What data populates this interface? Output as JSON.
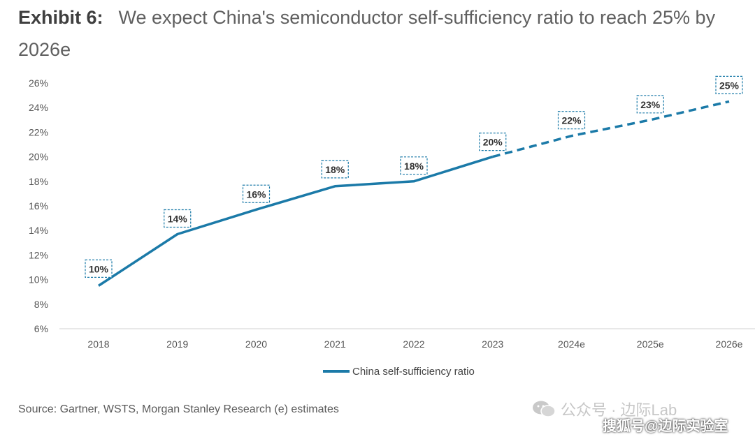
{
  "header": {
    "exhibit_label": "Exhibit 6:",
    "title": "We expect China's semiconductor self-sufficiency ratio to reach 25% by 2026e"
  },
  "chart_data": {
    "type": "line",
    "title": "We expect China's semiconductor self-sufficiency ratio to reach 25% by 2026e",
    "categories": [
      "2018",
      "2019",
      "2020",
      "2021",
      "2022",
      "2023",
      "2024e",
      "2025e",
      "2026e"
    ],
    "series": [
      {
        "name": "China self-sufficiency ratio",
        "values": [
          9.5,
          13.7,
          15.7,
          17.6,
          18.0,
          20.0,
          21.7,
          23.0,
          24.5
        ],
        "labels": [
          "10%",
          "14%",
          "16%",
          "18%",
          "18%",
          "20%",
          "22%",
          "23%",
          "25%"
        ],
        "estimate_start_index": 5,
        "color": "#1b7aa8"
      }
    ],
    "y_ticks": [
      "6%",
      "8%",
      "10%",
      "12%",
      "14%",
      "16%",
      "18%",
      "20%",
      "22%",
      "24%",
      "26%"
    ],
    "ylim": [
      6,
      26
    ],
    "xlabel": "",
    "ylabel": "",
    "legend_position": "bottom-center",
    "grid": false
  },
  "footer": {
    "source": "Source: Gartner, WSTS, Morgan Stanley Research (e) estimates",
    "watermark_top": "公众号 · 边际Lab",
    "watermark_bottom": "搜狐号@边际实验室"
  },
  "colors": {
    "series": "#1b7aa8",
    "axis_text": "#555555",
    "axis_line": "#d0d0d0"
  }
}
